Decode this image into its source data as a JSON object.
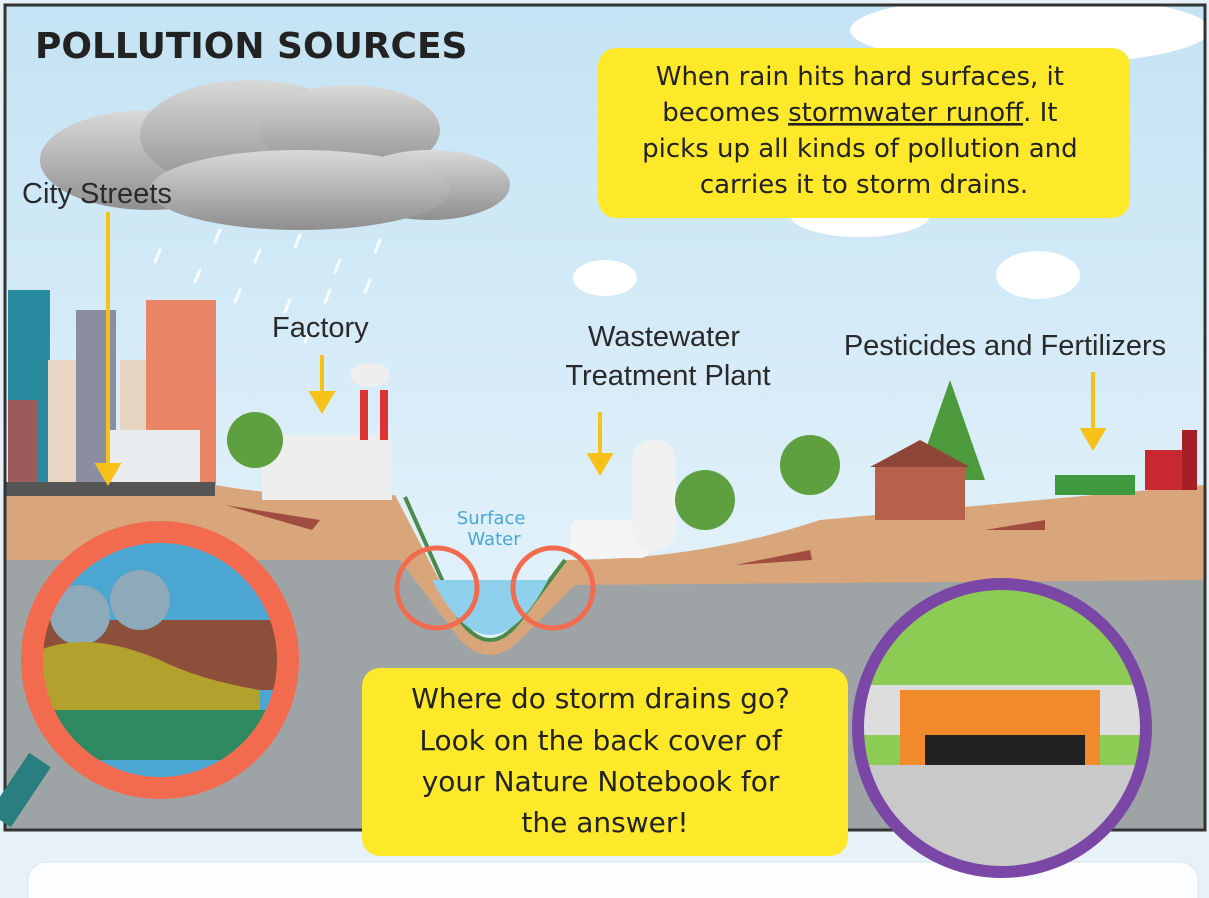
{
  "title": "POLLUTION SOURCES",
  "intro": {
    "line1": "When rain hits hard surfaces, it",
    "line2_before": "becomes ",
    "line2_term": "stormwater runoff",
    "line2_after": ". It",
    "line3": "picks up all kinds of pollution and",
    "line4": "carries it to storm drains."
  },
  "labels": {
    "city_streets": "City Streets",
    "factory": "Factory",
    "wastewater_line1": "Wastewater",
    "wastewater_line2": "Treatment Plant",
    "pesticides": "Pesticides and Fertilizers",
    "surface_line1": "Surface",
    "surface_line2": "Water"
  },
  "question": {
    "line1": "Where do storm drains go?",
    "line2": "Look on the back cover of",
    "line3": "your Nature Notebook for",
    "line4": "the answer!"
  }
}
